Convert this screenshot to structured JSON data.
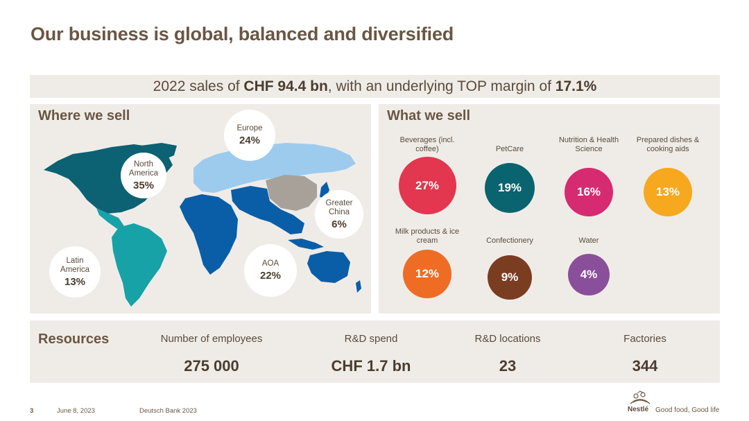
{
  "title": "Our business is global, balanced and diversified",
  "sales": {
    "prefix": "2022 sales of ",
    "amount": "CHF 94.4 bn",
    "middle": ", with an underlying TOP margin of ",
    "margin": "17.1%"
  },
  "where": {
    "title": "Where we sell",
    "regions": [
      {
        "name": "North America",
        "pct": "35%",
        "color": "#0c6273"
      },
      {
        "name": "Europe",
        "pct": "24%",
        "color": "#9ccbee"
      },
      {
        "name": "Greater China",
        "pct": "6%",
        "color": "#a8a19a"
      },
      {
        "name": "Latin America",
        "pct": "13%",
        "color": "#17a2a8"
      },
      {
        "name": "AOA",
        "pct": "22%",
        "color": "#0a5ea8"
      }
    ]
  },
  "what": {
    "title": "What we sell",
    "categories": [
      {
        "label": "Beverages (incl. coffee)",
        "pct": "27%",
        "color": "#e3364f"
      },
      {
        "label": "PetCare",
        "pct": "19%",
        "color": "#0a6470"
      },
      {
        "label": "Nutrition & Health Science",
        "pct": "16%",
        "color": "#d62b70"
      },
      {
        "label": "Prepared dishes & cooking aids",
        "pct": "13%",
        "color": "#f6a81f"
      },
      {
        "label": "Milk products & ice cream",
        "pct": "12%",
        "color": "#ef6c24"
      },
      {
        "label": "Confectionery",
        "pct": "9%",
        "color": "#7a3d22"
      },
      {
        "label": "Water",
        "pct": "4%",
        "color": "#8a4f9a"
      }
    ]
  },
  "resources": {
    "title": "Resources",
    "items": [
      {
        "label": "Number of employees",
        "value": "275 000"
      },
      {
        "label": "R&D spend",
        "value": "CHF 1.7 bn"
      },
      {
        "label": "R&D locations",
        "value": "23"
      },
      {
        "label": "Factories",
        "value": "344"
      }
    ]
  },
  "footer": {
    "page": "3",
    "date": "June 8, 2023",
    "event": "Deutsch Bank 2023",
    "brand": "Nestlé",
    "tagline": "Good food, Good life"
  }
}
